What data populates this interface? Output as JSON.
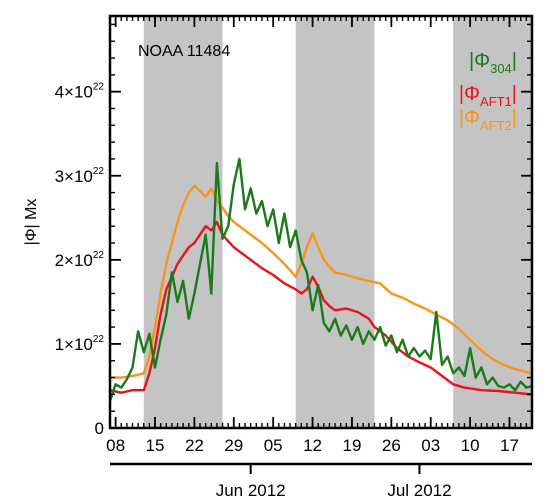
{
  "chart_data": {
    "type": "line",
    "annotation": "NOAA  11484",
    "ylabel": "|Φ| Mx",
    "ylim": [
      0,
      4.9e+22
    ],
    "xlim": [
      "2012-05-07",
      "2012-07-21"
    ],
    "y_ticks": [
      {
        "value": 0,
        "mantissa": "0",
        "exponent": ""
      },
      {
        "value": 1e+22,
        "mantissa": "1×10",
        "exponent": "22"
      },
      {
        "value": 2e+22,
        "mantissa": "2×10",
        "exponent": "22"
      },
      {
        "value": 3e+22,
        "mantissa": "3×10",
        "exponent": "22"
      },
      {
        "value": 4e+22,
        "mantissa": "4×10",
        "exponent": "22"
      }
    ],
    "x_ticks": [
      {
        "date": "2012-05-08",
        "label": "08"
      },
      {
        "date": "2012-05-15",
        "label": "15"
      },
      {
        "date": "2012-05-22",
        "label": "22"
      },
      {
        "date": "2012-05-29",
        "label": "29"
      },
      {
        "date": "2012-06-05",
        "label": "05"
      },
      {
        "date": "2012-06-12",
        "label": "12"
      },
      {
        "date": "2012-06-19",
        "label": "19"
      },
      {
        "date": "2012-06-26",
        "label": "26"
      },
      {
        "date": "2012-07-03",
        "label": "03"
      },
      {
        "date": "2012-07-10",
        "label": "10"
      },
      {
        "date": "2012-07-17",
        "label": "17"
      }
    ],
    "month_ticks": [
      {
        "date": "2012-06-01",
        "label": "Jun 2012"
      },
      {
        "date": "2012-07-01",
        "label": "Jul 2012"
      }
    ],
    "shaded_intervals": [
      [
        "2012-05-13",
        "2012-05-27"
      ],
      [
        "2012-06-09",
        "2012-06-23"
      ],
      [
        "2012-07-07",
        "2012-07-21"
      ]
    ],
    "shade_color": "#c4c4c4",
    "legend_position": "top-right",
    "series": [
      {
        "symbol": "|Φ",
        "subscript": "304",
        "color": "#1a7a1a",
        "points": [
          [
            "2012-05-07",
            3.2e+21
          ],
          [
            "2012-05-08",
            5.2e+21
          ],
          [
            "2012-05-09",
            4.8e+21
          ],
          [
            "2012-05-10",
            5.8e+21
          ],
          [
            "2012-05-11",
            7.2e+21
          ],
          [
            "2012-05-12",
            1.15e+22
          ],
          [
            "2012-05-13",
            9e+21
          ],
          [
            "2012-05-14",
            1.12e+22
          ],
          [
            "2012-05-15",
            7.2e+21
          ],
          [
            "2012-05-16",
            1.05e+22
          ],
          [
            "2012-05-17",
            1.35e+22
          ],
          [
            "2012-05-18",
            1.85e+22
          ],
          [
            "2012-05-19",
            1.5e+22
          ],
          [
            "2012-05-20",
            1.75e+22
          ],
          [
            "2012-05-21",
            1.3e+22
          ],
          [
            "2012-05-22",
            1.6e+22
          ],
          [
            "2012-05-23",
            1.95e+22
          ],
          [
            "2012-05-24",
            2.3e+22
          ],
          [
            "2012-05-25",
            1.6e+22
          ],
          [
            "2012-05-26",
            3.15e+22
          ],
          [
            "2012-05-27",
            2.25e+22
          ],
          [
            "2012-05-28",
            2.4e+22
          ],
          [
            "2012-05-29",
            2.9e+22
          ],
          [
            "2012-05-30",
            3.2e+22
          ],
          [
            "2012-05-31",
            2.6e+22
          ],
          [
            "2012-06-01",
            2.85e+22
          ],
          [
            "2012-06-02",
            2.55e+22
          ],
          [
            "2012-06-03",
            2.7e+22
          ],
          [
            "2012-06-04",
            2.4e+22
          ],
          [
            "2012-06-05",
            2.6e+22
          ],
          [
            "2012-06-06",
            2.2e+22
          ],
          [
            "2012-06-07",
            2.55e+22
          ],
          [
            "2012-06-08",
            2.15e+22
          ],
          [
            "2012-06-09",
            2.35e+22
          ],
          [
            "2012-06-10",
            2e+22
          ],
          [
            "2012-06-11",
            1.85e+22
          ],
          [
            "2012-06-12",
            1.4e+22
          ],
          [
            "2012-06-13",
            1.7e+22
          ],
          [
            "2012-06-14",
            1.25e+22
          ],
          [
            "2012-06-15",
            1.15e+22
          ],
          [
            "2012-06-16",
            1.3e+22
          ],
          [
            "2012-06-17",
            1.1e+22
          ],
          [
            "2012-06-18",
            1.22e+22
          ],
          [
            "2012-06-19",
            1.05e+22
          ],
          [
            "2012-06-20",
            1.2e+22
          ],
          [
            "2012-06-21",
            1e+22
          ],
          [
            "2012-06-22",
            1.15e+22
          ],
          [
            "2012-06-23",
            1.05e+22
          ],
          [
            "2012-06-24",
            1.2e+22
          ],
          [
            "2012-06-25",
            9.8e+21
          ],
          [
            "2012-06-26",
            1.1e+22
          ],
          [
            "2012-06-27",
            9e+21
          ],
          [
            "2012-06-28",
            1.05e+22
          ],
          [
            "2012-06-29",
            8.5e+21
          ],
          [
            "2012-06-30",
            9.5e+21
          ],
          [
            "2012-07-01",
            8.5e+21
          ],
          [
            "2012-07-02",
            9.2e+21
          ],
          [
            "2012-07-03",
            8.2e+21
          ],
          [
            "2012-07-04",
            1.38e+22
          ],
          [
            "2012-07-05",
            7.5e+21
          ],
          [
            "2012-07-06",
            8.5e+21
          ],
          [
            "2012-07-07",
            6.5e+21
          ],
          [
            "2012-07-08",
            7.2e+21
          ],
          [
            "2012-07-09",
            6.2e+21
          ],
          [
            "2012-07-10",
            9.5e+21
          ],
          [
            "2012-07-11",
            6e+21
          ],
          [
            "2012-07-12",
            7.2e+21
          ],
          [
            "2012-07-13",
            5.2e+21
          ],
          [
            "2012-07-14",
            6e+21
          ],
          [
            "2012-07-15",
            5e+21
          ],
          [
            "2012-07-16",
            4.8e+21
          ],
          [
            "2012-07-17",
            5.2e+21
          ],
          [
            "2012-07-18",
            4.5e+21
          ],
          [
            "2012-07-19",
            5.5e+21
          ],
          [
            "2012-07-20",
            4.8e+21
          ],
          [
            "2012-07-21",
            5e+21
          ]
        ]
      },
      {
        "symbol": "|Φ",
        "subscript": "AFT1",
        "color": "#e8141a",
        "points": [
          [
            "2012-05-07",
            4.5e+21
          ],
          [
            "2012-05-09",
            4.2e+21
          ],
          [
            "2012-05-11",
            4.5e+21
          ],
          [
            "2012-05-13",
            4.5e+21
          ],
          [
            "2012-05-14",
            6.5e+21
          ],
          [
            "2012-05-15",
            9.5e+21
          ],
          [
            "2012-05-16",
            1.35e+22
          ],
          [
            "2012-05-17",
            1.65e+22
          ],
          [
            "2012-05-18",
            1.8e+22
          ],
          [
            "2012-05-19",
            1.95e+22
          ],
          [
            "2012-05-20",
            2.05e+22
          ],
          [
            "2012-05-21",
            2.15e+22
          ],
          [
            "2012-05-22",
            2.2e+22
          ],
          [
            "2012-05-23",
            2.3e+22
          ],
          [
            "2012-05-24",
            2.4e+22
          ],
          [
            "2012-05-25",
            2.35e+22
          ],
          [
            "2012-05-26",
            2.45e+22
          ],
          [
            "2012-05-27",
            2.3e+22
          ],
          [
            "2012-05-28",
            2.22e+22
          ],
          [
            "2012-05-29",
            2.15e+22
          ],
          [
            "2012-05-30",
            2.1e+22
          ],
          [
            "2012-06-01",
            2e+22
          ],
          [
            "2012-06-03",
            1.9e+22
          ],
          [
            "2012-06-05",
            1.82e+22
          ],
          [
            "2012-06-07",
            1.72e+22
          ],
          [
            "2012-06-09",
            1.65e+22
          ],
          [
            "2012-06-10",
            1.6e+22
          ],
          [
            "2012-06-11",
            1.65e+22
          ],
          [
            "2012-06-12",
            1.8e+22
          ],
          [
            "2012-06-13",
            1.68e+22
          ],
          [
            "2012-06-14",
            1.52e+22
          ],
          [
            "2012-06-15",
            1.45e+22
          ],
          [
            "2012-06-16",
            1.4e+22
          ],
          [
            "2012-06-18",
            1.42e+22
          ],
          [
            "2012-06-20",
            1.38e+22
          ],
          [
            "2012-06-22",
            1.3e+22
          ],
          [
            "2012-06-23",
            1.2e+22
          ],
          [
            "2012-06-25",
            1.1e+22
          ],
          [
            "2012-06-27",
            9.5e+21
          ],
          [
            "2012-06-29",
            8.5e+21
          ],
          [
            "2012-07-01",
            7.8e+21
          ],
          [
            "2012-07-03",
            7.2e+21
          ],
          [
            "2012-07-05",
            6.2e+21
          ],
          [
            "2012-07-07",
            5.2e+21
          ],
          [
            "2012-07-09",
            4.8e+21
          ],
          [
            "2012-07-12",
            4.5e+21
          ],
          [
            "2012-07-15",
            4.4e+21
          ],
          [
            "2012-07-18",
            4.2e+21
          ],
          [
            "2012-07-21",
            4e+21
          ]
        ]
      },
      {
        "symbol": "|Φ",
        "subscript": "AFT2",
        "color": "#f7941d",
        "points": [
          [
            "2012-05-07",
            6e+21
          ],
          [
            "2012-05-09",
            6e+21
          ],
          [
            "2012-05-11",
            6.2e+21
          ],
          [
            "2012-05-13",
            6.5e+21
          ],
          [
            "2012-05-14",
            8.5e+21
          ],
          [
            "2012-05-15",
            1.2e+22
          ],
          [
            "2012-05-16",
            1.6e+22
          ],
          [
            "2012-05-17",
            1.95e+22
          ],
          [
            "2012-05-18",
            2.2e+22
          ],
          [
            "2012-05-19",
            2.45e+22
          ],
          [
            "2012-05-20",
            2.65e+22
          ],
          [
            "2012-05-21",
            2.8e+22
          ],
          [
            "2012-05-22",
            2.88e+22
          ],
          [
            "2012-05-23",
            2.82e+22
          ],
          [
            "2012-05-24",
            2.75e+22
          ],
          [
            "2012-05-25",
            2.85e+22
          ],
          [
            "2012-05-26",
            2.7e+22
          ],
          [
            "2012-05-27",
            2.62e+22
          ],
          [
            "2012-05-28",
            2.52e+22
          ],
          [
            "2012-05-29",
            2.45e+22
          ],
          [
            "2012-05-30",
            2.4e+22
          ],
          [
            "2012-06-01",
            2.3e+22
          ],
          [
            "2012-06-03",
            2.2e+22
          ],
          [
            "2012-06-05",
            2.08e+22
          ],
          [
            "2012-06-07",
            1.95e+22
          ],
          [
            "2012-06-09",
            1.8e+22
          ],
          [
            "2012-06-10",
            1.95e+22
          ],
          [
            "2012-06-11",
            2.15e+22
          ],
          [
            "2012-06-12",
            2.32e+22
          ],
          [
            "2012-06-13",
            2.15e+22
          ],
          [
            "2012-06-14",
            2e+22
          ],
          [
            "2012-06-15",
            1.92e+22
          ],
          [
            "2012-06-16",
            1.85e+22
          ],
          [
            "2012-06-18",
            1.82e+22
          ],
          [
            "2012-06-20",
            1.78e+22
          ],
          [
            "2012-06-22",
            1.75e+22
          ],
          [
            "2012-06-24",
            1.72e+22
          ],
          [
            "2012-06-26",
            1.6e+22
          ],
          [
            "2012-06-28",
            1.55e+22
          ],
          [
            "2012-06-30",
            1.48e+22
          ],
          [
            "2012-07-02",
            1.42e+22
          ],
          [
            "2012-07-04",
            1.35e+22
          ],
          [
            "2012-07-06",
            1.28e+22
          ],
          [
            "2012-07-08",
            1.18e+22
          ],
          [
            "2012-07-10",
            1.05e+22
          ],
          [
            "2012-07-12",
            9.2e+21
          ],
          [
            "2012-07-14",
            8.2e+21
          ],
          [
            "2012-07-16",
            7.5e+21
          ],
          [
            "2012-07-18",
            7e+21
          ],
          [
            "2012-07-21",
            6.5e+21
          ]
        ]
      }
    ]
  }
}
